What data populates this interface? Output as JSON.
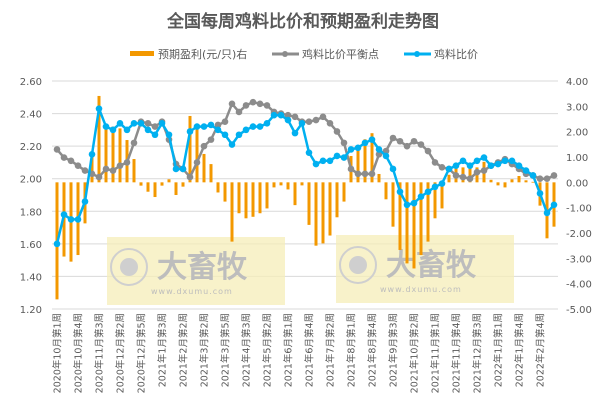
{
  "chart_data": {
    "type": "bar+line",
    "title": "全国每周鸡料比价和预期盈利走势图",
    "legend_position": "top",
    "grid": true,
    "colors": {
      "profit": "#F39800",
      "balance": "#8C8C8C",
      "ratio": "#00B0F0"
    },
    "left_axis": {
      "range": [
        1.2,
        2.6
      ],
      "ticks": [
        "1.20",
        "1.40",
        "1.60",
        "1.80",
        "2.00",
        "2.20",
        "2.40",
        "2.60"
      ]
    },
    "right_axis": {
      "range": [
        -5,
        4
      ],
      "ticks": [
        "-5.00",
        "-4.00",
        "-3.00",
        "-2.00",
        "-1.00",
        "0.00",
        "1.00",
        "2.00",
        "3.00",
        "4.00"
      ]
    },
    "x_tick_labels": [
      "2020年10月第1周",
      "2020年10月第4周",
      "2020年11月第3周",
      "2020年12月第2周",
      "2020年12月第5周",
      "2021年1月第3周",
      "2021年2月第2周",
      "2021年3月第2周",
      "2021年3月第5周",
      "2021年4月第3周",
      "2021年5月第2周",
      "2021年6月第1周",
      "2021年6月第4周",
      "2021年7月第2周",
      "2021年8月第1周",
      "2021年8月第4周",
      "2021年9月第3周",
      "2021年10月第2周",
      "2021年11月第1周",
      "2021年11月第4周",
      "2021年12月第3周",
      "2022年1月第1周",
      "2022年1月第4周",
      "2022年2月第4周"
    ],
    "series": [
      {
        "name": "预期盈利(元/只)右",
        "type": "bar",
        "axis": "right",
        "values": [
          -4.62,
          -2.93,
          -3.13,
          -2.87,
          -1.62,
          1.0,
          3.41,
          2.26,
          2.2,
          2.13,
          1.67,
          0.92,
          -0.13,
          -0.37,
          -0.58,
          -0.13,
          0.12,
          -0.5,
          -0.17,
          2.62,
          2.2,
          1.12,
          0.72,
          -0.4,
          -0.76,
          -2.34,
          -1.22,
          -1.42,
          -1.36,
          -1.22,
          -1.03,
          -0.2,
          -0.12,
          -0.28,
          -0.9,
          -0.12,
          -1.68,
          -2.5,
          -2.41,
          -2.1,
          -1.38,
          -0.76,
          1.04,
          1.25,
          1.7,
          1.94,
          0.33,
          -0.67,
          -1.75,
          -2.67,
          -3.2,
          -3.4,
          -2.87,
          -2.34,
          -1.42,
          -1.03,
          0.3,
          0.68,
          0.59,
          0.55,
          0.59,
          0.81,
          0.1,
          -0.12,
          -0.2,
          0.12,
          0.25,
          0.08,
          0.02,
          -0.92,
          -2.21,
          -1.75
        ]
      },
      {
        "name": "鸡料比价平衡点",
        "type": "line",
        "axis": "left",
        "values": [
          2.18,
          2.13,
          2.11,
          2.08,
          2.05,
          2.03,
          2.01,
          2.06,
          2.05,
          2.08,
          2.1,
          2.22,
          2.35,
          2.34,
          2.32,
          2.35,
          2.24,
          2.09,
          2.06,
          2.01,
          2.1,
          2.2,
          2.24,
          2.33,
          2.35,
          2.46,
          2.41,
          2.45,
          2.47,
          2.46,
          2.45,
          2.41,
          2.4,
          2.39,
          2.38,
          2.35,
          2.35,
          2.36,
          2.38,
          2.34,
          2.29,
          2.22,
          2.06,
          2.03,
          2.03,
          2.03,
          2.15,
          2.17,
          2.25,
          2.23,
          2.2,
          2.23,
          2.21,
          2.17,
          2.1,
          2.07,
          2.06,
          2.02,
          2.01,
          2.0,
          2.04,
          2.05,
          2.08,
          2.1,
          2.12,
          2.09,
          2.06,
          2.03,
          2.02,
          2.0,
          2.0,
          2.02
        ]
      },
      {
        "name": "鸡料比价",
        "type": "line",
        "axis": "left",
        "values": [
          1.6,
          1.78,
          1.75,
          1.75,
          1.86,
          2.15,
          2.43,
          2.32,
          2.3,
          2.34,
          2.3,
          2.34,
          2.34,
          2.3,
          2.27,
          2.34,
          2.27,
          2.06,
          2.06,
          2.29,
          2.32,
          2.32,
          2.33,
          2.3,
          2.27,
          2.21,
          2.27,
          2.3,
          2.32,
          2.32,
          2.34,
          2.39,
          2.39,
          2.36,
          2.28,
          2.34,
          2.16,
          2.09,
          2.11,
          2.11,
          2.14,
          2.13,
          2.18,
          2.19,
          2.22,
          2.24,
          2.18,
          2.14,
          2.06,
          1.92,
          1.84,
          1.85,
          1.89,
          1.92,
          1.95,
          1.97,
          2.06,
          2.08,
          2.11,
          2.08,
          2.11,
          2.13,
          2.08,
          2.09,
          2.11,
          2.11,
          2.08,
          2.05,
          2.02,
          1.91,
          1.79,
          1.84
        ]
      }
    ]
  },
  "watermark": {
    "logo_text": "大畜牧",
    "url": "www.dxumu.com"
  }
}
